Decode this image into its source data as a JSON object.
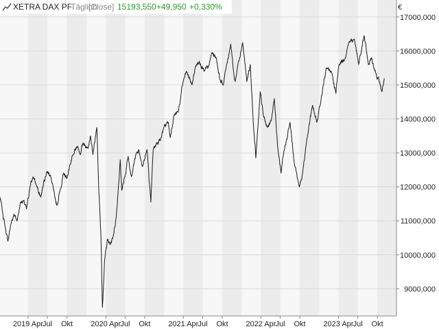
{
  "header": {
    "instrument": "XETRA DAX PF",
    "period": "Täglich",
    "mode": "[Close]",
    "last": "15193,550",
    "change": "+49,950",
    "change_pct": "+0,330%"
  },
  "colors": {
    "positive": "#2a9a2a",
    "line": "#1a1a1a",
    "band_light": "#f7f7f7",
    "band_dark": "#ececec",
    "grid": "#d8d8d8"
  },
  "icons": {
    "chart_type": "line-chart-icon"
  },
  "chart_data": {
    "type": "line",
    "y_unit": "€",
    "ylim": [
      8200,
      17500
    ],
    "yticks": [
      9000,
      10000,
      11000,
      12000,
      13000,
      14000,
      15000,
      16000,
      17000
    ],
    "ytick_labels": [
      "9000,000",
      "10000,000",
      "11000,000",
      "12000,000",
      "13000,000",
      "14000,000",
      "15000,000",
      "16000,000",
      "17000,000"
    ],
    "xlim": [
      "2018-11-20",
      "2023-12-30"
    ],
    "xticks": [
      {
        "date": "2019-04-01",
        "label": "2019 Apr"
      },
      {
        "date": "2019-07-01",
        "label": "Jul"
      },
      {
        "date": "2019-10-01",
        "label": "Okt"
      },
      {
        "date": "2020-04-01",
        "label": "2020 Apr"
      },
      {
        "date": "2020-07-01",
        "label": "Jul"
      },
      {
        "date": "2020-10-01",
        "label": "Okt"
      },
      {
        "date": "2021-04-01",
        "label": "2021 Apr"
      },
      {
        "date": "2021-07-01",
        "label": "Jul"
      },
      {
        "date": "2021-10-01",
        "label": "Okt"
      },
      {
        "date": "2022-04-01",
        "label": "2022 Apr"
      },
      {
        "date": "2022-07-01",
        "label": "Jul"
      },
      {
        "date": "2022-10-01",
        "label": "Okt"
      },
      {
        "date": "2023-04-01",
        "label": "2023 Apr"
      },
      {
        "date": "2023-07-01",
        "label": "Jul"
      },
      {
        "date": "2023-10-01",
        "label": "Okt"
      }
    ],
    "series": [
      {
        "points": [
          [
            "2018-11-20",
            11700
          ],
          [
            "2018-12-01",
            11300
          ],
          [
            "2018-12-15",
            10800
          ],
          [
            "2018-12-27",
            10400
          ],
          [
            "2019-01-10",
            10900
          ],
          [
            "2019-01-25",
            11200
          ],
          [
            "2019-02-08",
            11000
          ],
          [
            "2019-02-25",
            11550
          ],
          [
            "2019-03-10",
            11600
          ],
          [
            "2019-03-25",
            11350
          ],
          [
            "2019-04-10",
            12000
          ],
          [
            "2019-04-25",
            12300
          ],
          [
            "2019-05-10",
            12050
          ],
          [
            "2019-05-31",
            11700
          ],
          [
            "2019-06-15",
            12200
          ],
          [
            "2019-06-28",
            12450
          ],
          [
            "2019-07-15",
            12350
          ],
          [
            "2019-08-05",
            11700
          ],
          [
            "2019-08-15",
            11450
          ],
          [
            "2019-08-30",
            11900
          ],
          [
            "2019-09-15",
            12400
          ],
          [
            "2019-10-01",
            12250
          ],
          [
            "2019-10-15",
            12650
          ],
          [
            "2019-11-01",
            12950
          ],
          [
            "2019-11-20",
            13200
          ],
          [
            "2019-12-03",
            12950
          ],
          [
            "2019-12-16",
            13300
          ],
          [
            "2020-01-05",
            13150
          ],
          [
            "2020-01-20",
            13500
          ],
          [
            "2020-01-31",
            12950
          ],
          [
            "2020-02-19",
            13750
          ],
          [
            "2020-02-28",
            11900
          ],
          [
            "2020-03-09",
            10600
          ],
          [
            "2020-03-16",
            8450
          ],
          [
            "2020-03-26",
            9800
          ],
          [
            "2020-04-08",
            10450
          ],
          [
            "2020-04-21",
            10300
          ],
          [
            "2020-05-04",
            10500
          ],
          [
            "2020-05-20",
            11100
          ],
          [
            "2020-06-08",
            12800
          ],
          [
            "2020-06-15",
            11900
          ],
          [
            "2020-06-30",
            12300
          ],
          [
            "2020-07-15",
            12900
          ],
          [
            "2020-07-31",
            12300
          ],
          [
            "2020-08-20",
            12950
          ],
          [
            "2020-09-03",
            13100
          ],
          [
            "2020-09-21",
            12600
          ],
          [
            "2020-10-12",
            13100
          ],
          [
            "2020-10-30",
            11550
          ],
          [
            "2020-11-10",
            13100
          ],
          [
            "2020-11-27",
            13300
          ],
          [
            "2020-12-15",
            13400
          ],
          [
            "2020-12-30",
            13750
          ],
          [
            "2021-01-20",
            13900
          ],
          [
            "2021-01-29",
            13450
          ],
          [
            "2021-02-15",
            14100
          ],
          [
            "2021-03-08",
            14200
          ],
          [
            "2021-03-31",
            15100
          ],
          [
            "2021-04-16",
            15400
          ],
          [
            "2021-05-12",
            15000
          ],
          [
            "2021-05-28",
            15550
          ],
          [
            "2021-06-15",
            15700
          ],
          [
            "2021-07-08",
            15400
          ],
          [
            "2021-07-30",
            15550
          ],
          [
            "2021-08-13",
            15950
          ],
          [
            "2021-09-03",
            15800
          ],
          [
            "2021-09-20",
            15150
          ],
          [
            "2021-10-06",
            15000
          ],
          [
            "2021-10-20",
            15550
          ],
          [
            "2021-11-10",
            16200
          ],
          [
            "2021-11-26",
            15250
          ],
          [
            "2021-12-01",
            15100
          ],
          [
            "2021-12-15",
            15650
          ],
          [
            "2022-01-05",
            16250
          ],
          [
            "2022-01-25",
            15100
          ],
          [
            "2022-02-10",
            15600
          ],
          [
            "2022-02-24",
            13900
          ],
          [
            "2022-03-08",
            12850
          ],
          [
            "2022-03-29",
            14800
          ],
          [
            "2022-04-12",
            14100
          ],
          [
            "2022-05-02",
            13750
          ],
          [
            "2022-05-20",
            13950
          ],
          [
            "2022-06-03",
            14600
          ],
          [
            "2022-06-20",
            13100
          ],
          [
            "2022-07-05",
            12400
          ],
          [
            "2022-07-15",
            12900
          ],
          [
            "2022-08-16",
            13900
          ],
          [
            "2022-09-05",
            12700
          ],
          [
            "2022-09-29",
            12000
          ],
          [
            "2022-10-14",
            12400
          ],
          [
            "2022-11-01",
            13300
          ],
          [
            "2022-11-30",
            14400
          ],
          [
            "2022-12-20",
            13900
          ],
          [
            "2023-01-05",
            14400
          ],
          [
            "2023-02-02",
            15500
          ],
          [
            "2023-03-01",
            15350
          ],
          [
            "2023-03-20",
            14750
          ],
          [
            "2023-04-03",
            15600
          ],
          [
            "2023-05-03",
            15800
          ],
          [
            "2023-05-19",
            16250
          ],
          [
            "2023-06-15",
            16350
          ],
          [
            "2023-07-05",
            15600
          ],
          [
            "2023-07-31",
            16450
          ],
          [
            "2023-08-20",
            15600
          ],
          [
            "2023-09-04",
            15800
          ],
          [
            "2023-09-26",
            15300
          ],
          [
            "2023-10-10",
            15100
          ],
          [
            "2023-10-23",
            14800
          ],
          [
            "2023-11-03",
            15193.55
          ]
        ]
      }
    ]
  }
}
